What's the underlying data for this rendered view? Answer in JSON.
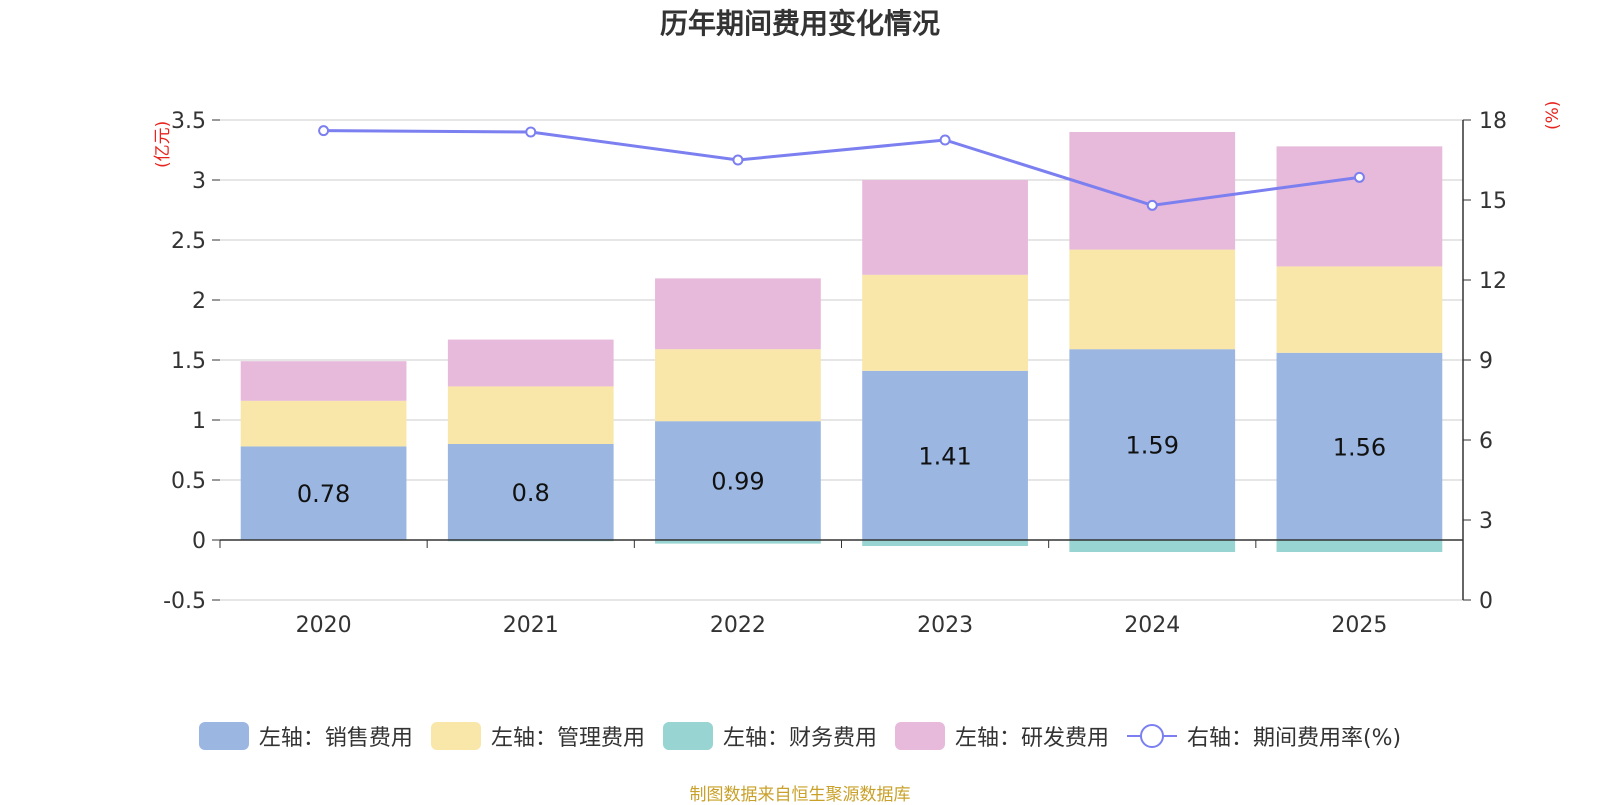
{
  "title": "历年期间费用变化情况",
  "source": "制图数据来自恒生聚源数据库",
  "colors": {
    "sales": "#9bb7e1",
    "admin": "#f8e7a8",
    "finance": "#97d4d2",
    "rnd": "#e7b9da",
    "rate": "#7b7ff0",
    "unit": "#e8231d"
  },
  "chart_data": {
    "type": "bar",
    "stacked": true,
    "categories": [
      "2020",
      "2021",
      "2022",
      "2023",
      "2024",
      "2025"
    ],
    "left_axis": {
      "unit": "(亿元)",
      "ylim": [
        -0.5,
        3.5
      ],
      "ticks": [
        "3.5",
        "3",
        "2.5",
        "2",
        "1.5",
        "1",
        "0.5",
        "0",
        "-0.5"
      ]
    },
    "right_axis": {
      "unit": "(%)",
      "ylim": [
        0,
        18
      ],
      "ticks": [
        "18",
        "15",
        "12",
        "9",
        "6",
        "3",
        "0"
      ]
    },
    "series": [
      {
        "name": "左轴：销售费用",
        "key": "sales",
        "values": [
          0.78,
          0.8,
          0.99,
          1.41,
          1.59,
          1.56
        ],
        "labels": [
          "0.78",
          "0.8",
          "0.99",
          "1.41",
          "1.59",
          "1.56"
        ]
      },
      {
        "name": "左轴：管理费用",
        "key": "admin",
        "values": [
          0.38,
          0.48,
          0.6,
          0.8,
          0.83,
          0.72
        ]
      },
      {
        "name": "左轴：财务费用",
        "key": "finance",
        "values": [
          0.0,
          -0.01,
          -0.03,
          -0.05,
          -0.1,
          -0.1
        ]
      },
      {
        "name": "左轴：研发费用",
        "key": "rnd",
        "values": [
          0.33,
          0.39,
          0.59,
          0.79,
          0.98,
          1.0
        ]
      },
      {
        "name": "右轴：期间费用率(%)",
        "key": "rate",
        "type": "line",
        "values": [
          17.6,
          17.55,
          16.5,
          17.25,
          14.8,
          15.85
        ]
      }
    ]
  }
}
